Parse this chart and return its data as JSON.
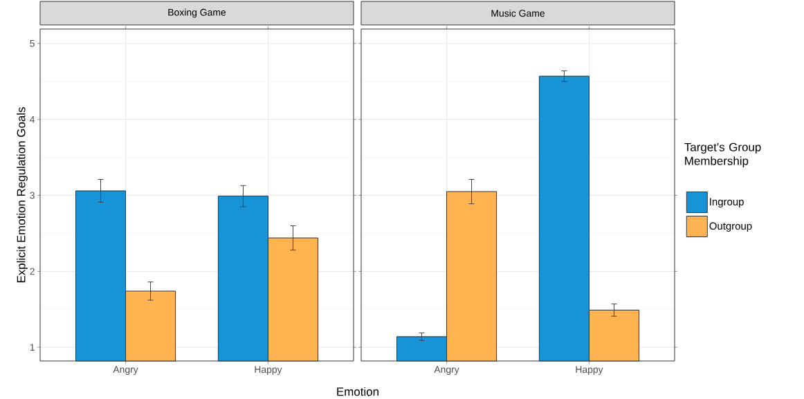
{
  "chart_data": [
    {
      "type": "bar",
      "title": "Boxing Game",
      "xlabel": "Emotion",
      "ylabel": "Explicit Emotion Regulation Goals",
      "categories": [
        "Angry",
        "Happy"
      ],
      "series": [
        {
          "color": "#1793d8",
          "values": [
            3.06,
            2.99
          ],
          "errors": [
            0.15,
            0.14
          ]
        },
        {
          "color": "#ffb451",
          "values": [
            1.74,
            2.44
          ],
          "errors": [
            0.12,
            0.16
          ]
        }
      ],
      "ylim": [
        0.82,
        5.19
      ],
      "yticks": [
        1,
        2,
        3,
        4,
        5
      ],
      "grid": true
    },
    {
      "type": "bar",
      "title": "Music Game",
      "legend_title": "Target's Group Membership",
      "categories": [
        "Angry",
        "Happy"
      ],
      "series": [
        {
          "name": "Ingroup",
          "color": "#1793d8",
          "values": [
            1.14,
            4.57
          ],
          "errors": [
            0.05,
            0.07
          ]
        },
        {
          "name": "Outgroup",
          "color": "#ffb451",
          "values": [
            3.05,
            1.49
          ],
          "errors": [
            0.16,
            0.08
          ]
        }
      ],
      "ylim": [
        0.82,
        5.19
      ],
      "yticks": [
        1,
        2,
        3,
        4,
        5
      ],
      "grid": true,
      "legend": "right",
      "tick_labels": "x"
    }
  ]
}
